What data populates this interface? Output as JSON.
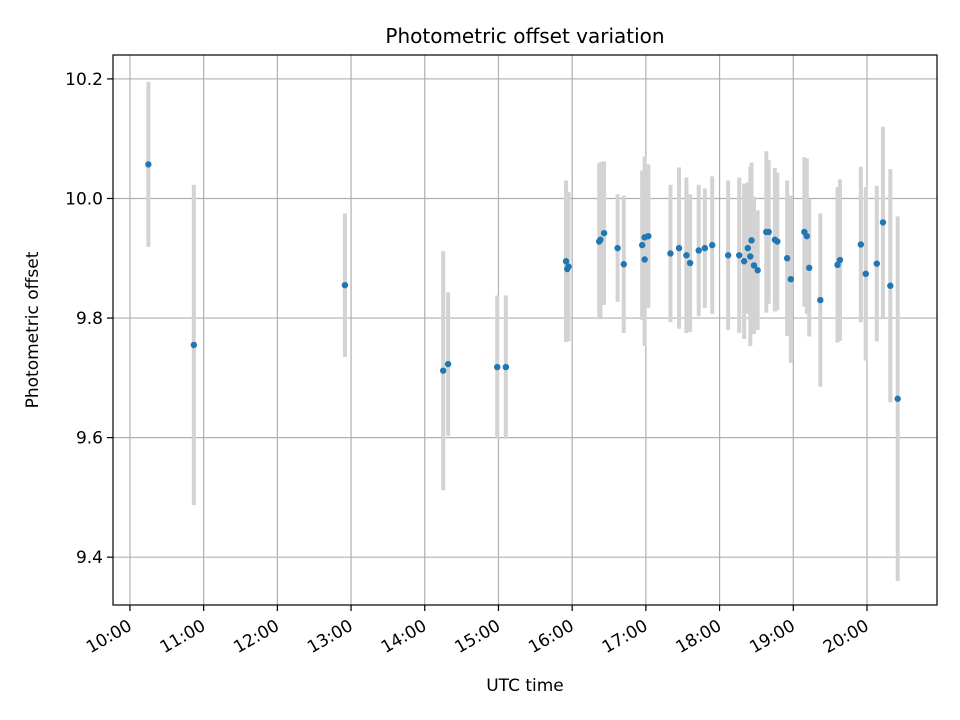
{
  "chart_data": {
    "type": "scatter",
    "title": "Photometric offset variation",
    "xlabel": "UTC time",
    "ylabel": "Photometric offset",
    "x_ticks": [
      "10:00",
      "11:00",
      "12:00",
      "13:00",
      "14:00",
      "15:00",
      "16:00",
      "17:00",
      "18:00",
      "19:00",
      "20:00"
    ],
    "y_ticks": [
      "9.4",
      "9.6",
      "9.8",
      "10.0",
      "10.2"
    ],
    "x_range_hours": [
      9.77,
      20.95
    ],
    "ylim": [
      9.32,
      10.24
    ],
    "grid": true,
    "colors": {
      "point": "#1f77b4",
      "errorbar": "#d3d3d3",
      "grid": "#b0b0b0"
    },
    "series": [
      {
        "x": [
          "10:15",
          "10:52",
          "12:55",
          "14:15",
          "14:19",
          "14:59",
          "15:06",
          "15:55",
          "15:56",
          "15:57",
          "16:22",
          "16:23",
          "16:26",
          "16:37",
          "16:42",
          "16:57",
          "16:59",
          "16:59",
          "17:02",
          "17:20",
          "17:27",
          "17:33",
          "17:36",
          "17:43",
          "17:48",
          "17:54",
          "18:07",
          "18:16",
          "18:20",
          "18:23",
          "18:25",
          "18:26",
          "18:28",
          "18:31",
          "18:38",
          "18:40",
          "18:45",
          "18:47",
          "18:55",
          "18:58",
          "19:09",
          "19:11",
          "19:13",
          "19:22",
          "19:36",
          "19:38",
          "19:55",
          "19:59",
          "20:08",
          "20:13",
          "20:19",
          "20:25"
        ],
        "y": [
          10.057,
          9.755,
          9.855,
          9.712,
          9.723,
          9.718,
          9.718,
          9.895,
          9.882,
          9.886,
          9.928,
          9.931,
          9.942,
          9.917,
          9.89,
          9.922,
          9.935,
          9.898,
          9.937,
          9.908,
          9.917,
          9.905,
          9.892,
          9.913,
          9.917,
          9.922,
          9.905,
          9.905,
          9.895,
          9.917,
          9.903,
          9.93,
          9.888,
          9.88,
          9.944,
          9.944,
          9.931,
          9.928,
          9.9,
          9.865,
          9.944,
          9.937,
          9.884,
          9.83,
          9.889,
          9.897,
          9.923,
          9.874,
          9.891,
          9.96,
          9.854,
          9.665
        ],
        "yerr": [
          0.138,
          0.268,
          0.12,
          0.2,
          0.12,
          0.12,
          0.12,
          0.135,
          0.12,
          0.125,
          0.13,
          0.13,
          0.12,
          0.09,
          0.115,
          0.125,
          0.135,
          0.145,
          0.12,
          0.115,
          0.135,
          0.13,
          0.115,
          0.11,
          0.1,
          0.115,
          0.125,
          0.13,
          0.13,
          0.11,
          0.15,
          0.13,
          0.115,
          0.1,
          0.135,
          0.12,
          0.12,
          0.115,
          0.13,
          0.14,
          0.125,
          0.13,
          0.115,
          0.145,
          0.13,
          0.135,
          0.13,
          0.145,
          0.13,
          0.16,
          0.195,
          0.305
        ]
      }
    ]
  }
}
